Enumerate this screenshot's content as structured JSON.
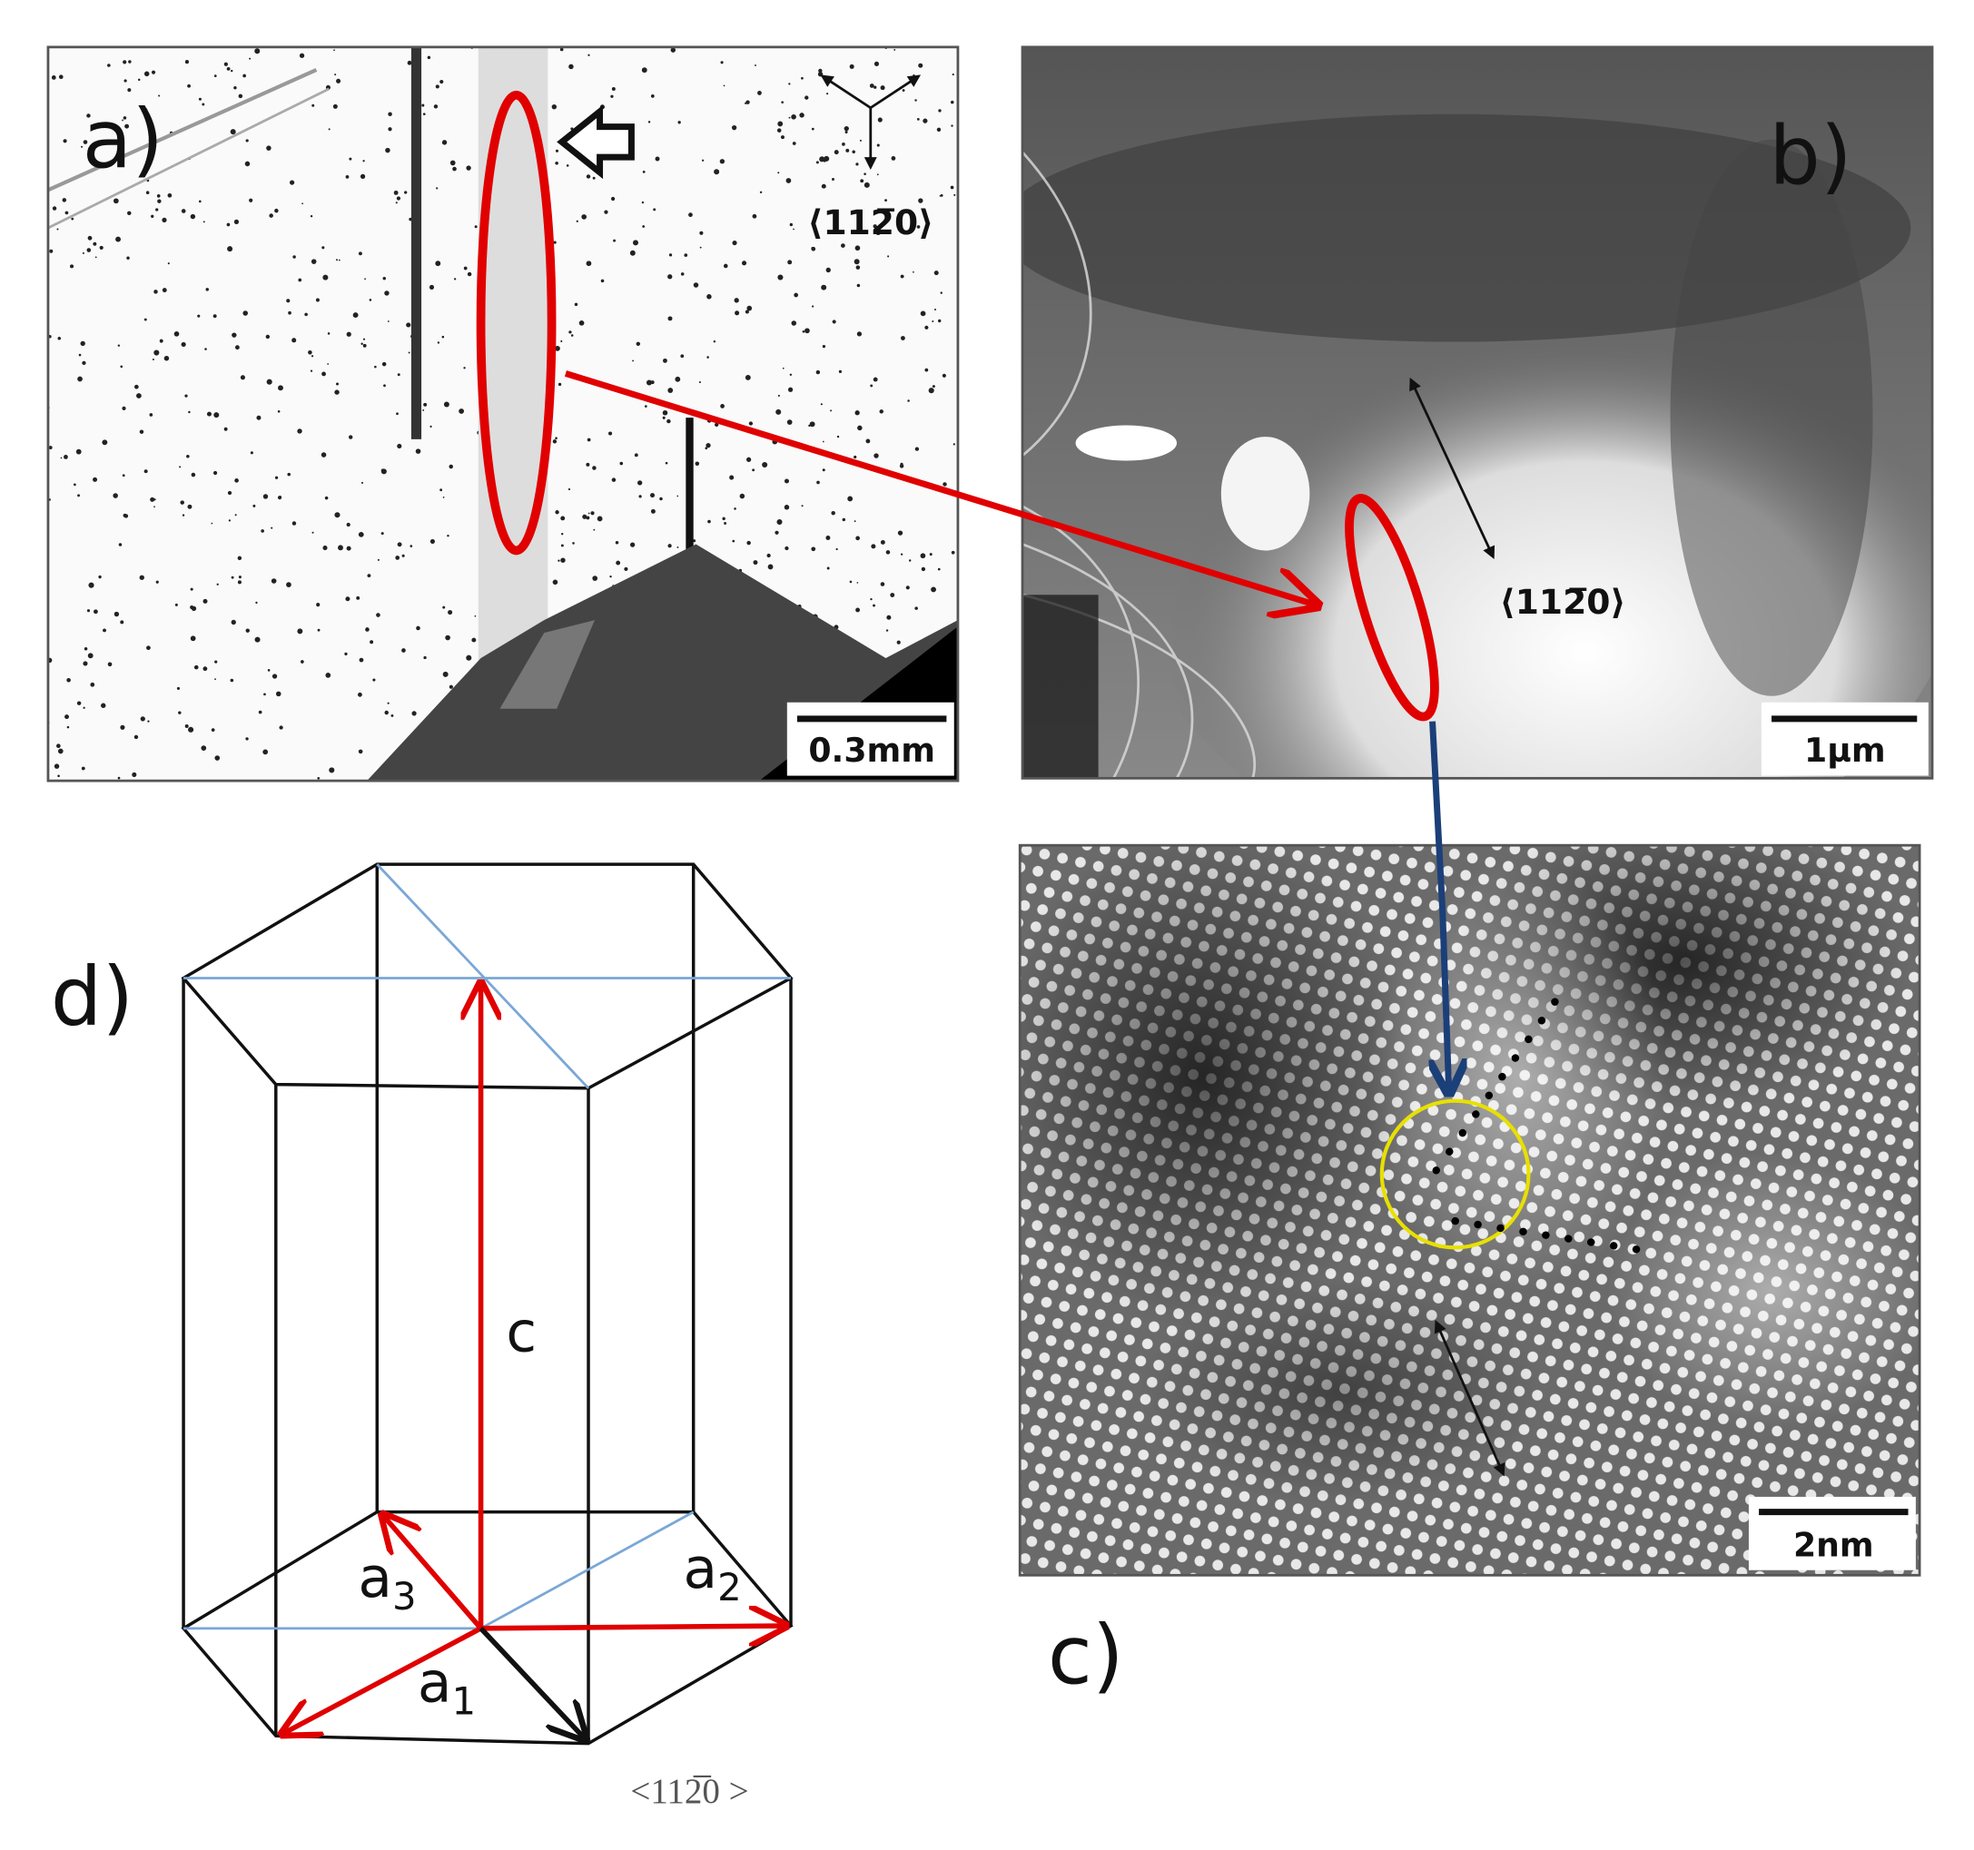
{
  "panels": {
    "a": {
      "label": "a)",
      "scale_bar": "0.3mm",
      "direction": "⟨112̅0⟩"
    },
    "b": {
      "label": "b)",
      "scale_bar": "1µm",
      "direction": "⟨112̅0⟩"
    },
    "c": {
      "label": "c)",
      "scale_bar": "2nm"
    },
    "d": {
      "label": "d)",
      "direction": "<112̅0 >",
      "vectors": {
        "c": "c",
        "a1": {
          "name": "a",
          "index": "1"
        },
        "a2": {
          "name": "a",
          "index": "2"
        },
        "a3": {
          "name": "a",
          "index": "3"
        }
      }
    }
  }
}
